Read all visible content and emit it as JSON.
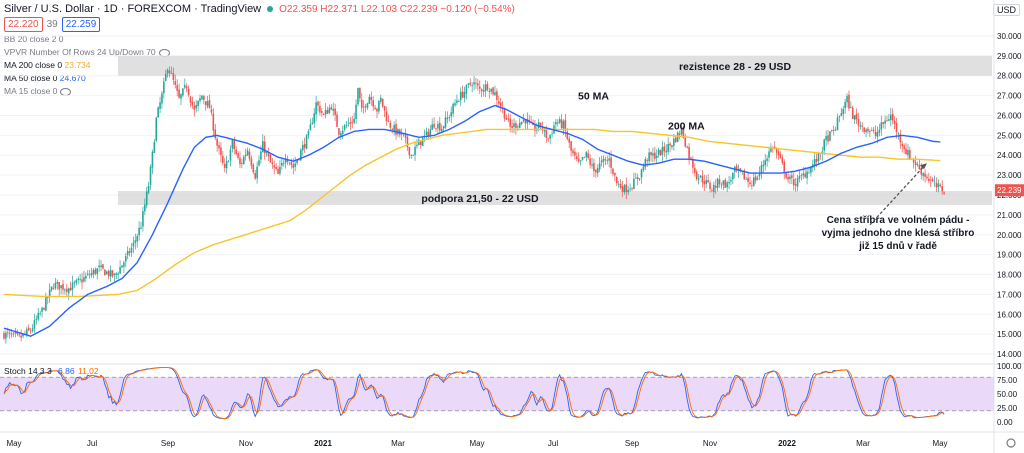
{
  "header": {
    "symbol": "Silver / U.S. Dollar · 1D · FOREXCOM · TradingView",
    "ohlc": "O22.359 H22.371 L22.103 C22.239 −0.120 (−0.54%)",
    "sell_price": "22.220",
    "spread": "39",
    "buy_price": "22.259",
    "currency_button": "USD"
  },
  "indicators": [
    {
      "label": "BB 20 close 2 0",
      "value": ""
    },
    {
      "label": "VPVR Number Of Rows 24 Up/Down 70",
      "value": ""
    },
    {
      "label": "MA 200 close 0",
      "value": "23.734"
    },
    {
      "label": "MA 50 close 0",
      "value": "24.670"
    },
    {
      "label": "MA 15 close 0",
      "value": ""
    }
  ],
  "stoch_label": "Stoch 14 3 3",
  "stoch_values": [
    "6.86",
    "11.02"
  ],
  "colors": {
    "up": "#26a69a",
    "down": "#ef5350",
    "ma50": "#2962ff",
    "ma200": "#f7c52b",
    "zone": "#d5d5d5",
    "stoch_bg": "#e1c9f5",
    "arrow": "#555555"
  },
  "chart_data": {
    "type": "candlestick",
    "title": "",
    "price_axis": {
      "ticks": [
        "30.000",
        "29.000",
        "28.000",
        "27.000",
        "26.000",
        "25.000",
        "24.000",
        "23.000",
        "22.000",
        "21.000",
        "20.000",
        "19.000",
        "18.000",
        "17.000",
        "16.000",
        "15.000",
        "14.000"
      ],
      "range": [
        13.6,
        30.4
      ],
      "last_price": "22.239"
    },
    "time_axis": [
      "May",
      "Jul",
      "Sep",
      "Nov",
      "2021",
      "Mar",
      "May",
      "Jul",
      "Sep",
      "Nov",
      "2022",
      "Mar",
      "May"
    ],
    "zones": [
      {
        "label": "rezistence 28 - 29 USD",
        "from": 28.0,
        "to": 29.0
      },
      {
        "label": "podpora 21,50 - 22 USD",
        "from": 21.5,
        "to": 22.2
      }
    ],
    "annotations": [
      {
        "text": "50 MA"
      },
      {
        "text": "200 MA"
      },
      {
        "lines": [
          "Cena stříbra ve volném pádu -",
          "vyjma jednoho dne klesá stříbro",
          "již 15 dnů v řadě"
        ]
      }
    ],
    "close_keypoints": [
      [
        0,
        15.0
      ],
      [
        8,
        14.8
      ],
      [
        14,
        15.2
      ],
      [
        20,
        16.2
      ],
      [
        26,
        17.5
      ],
      [
        34,
        17.3
      ],
      [
        42,
        17.8
      ],
      [
        50,
        18.3
      ],
      [
        58,
        17.9
      ],
      [
        64,
        18.8
      ],
      [
        68,
        19.5
      ],
      [
        72,
        20.5
      ],
      [
        76,
        22.5
      ],
      [
        78,
        24.0
      ],
      [
        80,
        25.8
      ],
      [
        83,
        27.0
      ],
      [
        86,
        28.5
      ],
      [
        88,
        28.0
      ],
      [
        92,
        26.8
      ],
      [
        96,
        27.5
      ],
      [
        100,
        26.2
      ],
      [
        104,
        27.0
      ],
      [
        108,
        26.4
      ],
      [
        112,
        24.5
      ],
      [
        116,
        23.2
      ],
      [
        120,
        24.6
      ],
      [
        124,
        23.5
      ],
      [
        128,
        24.3
      ],
      [
        132,
        23.0
      ],
      [
        136,
        24.5
      ],
      [
        140,
        23.6
      ],
      [
        144,
        23.0
      ],
      [
        148,
        24.0
      ],
      [
        152,
        23.4
      ],
      [
        156,
        24.2
      ],
      [
        160,
        25.0
      ],
      [
        164,
        26.6
      ],
      [
        168,
        26.0
      ],
      [
        172,
        26.5
      ],
      [
        176,
        25.2
      ],
      [
        180,
        25.5
      ],
      [
        184,
        25.8
      ],
      [
        186,
        27.3
      ],
      [
        188,
        26.2
      ],
      [
        192,
        27.0
      ],
      [
        196,
        26.3
      ],
      [
        198,
        26.8
      ],
      [
        202,
        25.6
      ],
      [
        206,
        25.2
      ],
      [
        210,
        24.9
      ],
      [
        214,
        24.0
      ],
      [
        218,
        24.6
      ],
      [
        222,
        25.0
      ],
      [
        226,
        25.6
      ],
      [
        230,
        25.4
      ],
      [
        234,
        26.0
      ],
      [
        238,
        26.8
      ],
      [
        242,
        27.2
      ],
      [
        246,
        27.7
      ],
      [
        250,
        27.3
      ],
      [
        254,
        27.5
      ],
      [
        258,
        27.1
      ],
      [
        262,
        26.3
      ],
      [
        266,
        25.4
      ],
      [
        270,
        25.6
      ],
      [
        274,
        25.8
      ],
      [
        278,
        25.3
      ],
      [
        282,
        25.5
      ],
      [
        286,
        24.8
      ],
      [
        290,
        25.7
      ],
      [
        294,
        25.5
      ],
      [
        298,
        24.2
      ],
      [
        302,
        23.5
      ],
      [
        306,
        24.0
      ],
      [
        310,
        23.2
      ],
      [
        314,
        23.6
      ],
      [
        318,
        23.8
      ],
      [
        322,
        22.6
      ],
      [
        326,
        22.3
      ],
      [
        330,
        22.5
      ],
      [
        334,
        23.0
      ],
      [
        338,
        23.9
      ],
      [
        342,
        24.0
      ],
      [
        346,
        24.2
      ],
      [
        350,
        24.5
      ],
      [
        354,
        25.0
      ],
      [
        356,
        25.3
      ],
      [
        360,
        24.0
      ],
      [
        364,
        23.0
      ],
      [
        368,
        22.7
      ],
      [
        372,
        22.3
      ],
      [
        376,
        22.7
      ],
      [
        380,
        22.5
      ],
      [
        384,
        23.2
      ],
      [
        388,
        23.0
      ],
      [
        392,
        22.6
      ],
      [
        396,
        22.9
      ],
      [
        400,
        23.8
      ],
      [
        404,
        24.5
      ],
      [
        408,
        23.7
      ],
      [
        412,
        22.8
      ],
      [
        416,
        22.6
      ],
      [
        420,
        23.0
      ],
      [
        424,
        23.4
      ],
      [
        428,
        23.9
      ],
      [
        432,
        24.8
      ],
      [
        436,
        25.2
      ],
      [
        440,
        26.2
      ],
      [
        443,
        26.8
      ],
      [
        446,
        26.0
      ],
      [
        450,
        25.5
      ],
      [
        454,
        25.3
      ],
      [
        458,
        25.0
      ],
      [
        462,
        25.6
      ],
      [
        466,
        26.0
      ],
      [
        470,
        25.0
      ],
      [
        474,
        24.2
      ],
      [
        478,
        23.7
      ],
      [
        482,
        23.2
      ],
      [
        486,
        22.8
      ],
      [
        490,
        22.4
      ],
      [
        494,
        22.24
      ]
    ],
    "ma50_keypoints": [
      [
        0,
        15.3
      ],
      [
        14,
        14.9
      ],
      [
        24,
        15.4
      ],
      [
        34,
        16.3
      ],
      [
        44,
        17.0
      ],
      [
        54,
        17.4
      ],
      [
        62,
        17.8
      ],
      [
        70,
        18.6
      ],
      [
        78,
        20.0
      ],
      [
        86,
        21.6
      ],
      [
        94,
        23.3
      ],
      [
        100,
        24.4
      ],
      [
        106,
        24.9
      ],
      [
        112,
        25.0
      ],
      [
        120,
        24.8
      ],
      [
        128,
        24.6
      ],
      [
        136,
        24.3
      ],
      [
        144,
        23.9
      ],
      [
        152,
        23.7
      ],
      [
        160,
        24.0
      ],
      [
        168,
        24.4
      ],
      [
        176,
        24.9
      ],
      [
        184,
        25.2
      ],
      [
        192,
        25.3
      ],
      [
        200,
        25.3
      ],
      [
        210,
        25.1
      ],
      [
        218,
        24.9
      ],
      [
        226,
        25.0
      ],
      [
        234,
        25.3
      ],
      [
        242,
        25.7
      ],
      [
        250,
        26.2
      ],
      [
        258,
        26.5
      ],
      [
        264,
        26.3
      ],
      [
        272,
        25.9
      ],
      [
        280,
        25.5
      ],
      [
        288,
        25.3
      ],
      [
        296,
        25.1
      ],
      [
        304,
        24.8
      ],
      [
        312,
        24.3
      ],
      [
        320,
        24.0
      ],
      [
        328,
        23.7
      ],
      [
        336,
        23.5
      ],
      [
        344,
        23.6
      ],
      [
        352,
        23.8
      ],
      [
        360,
        23.8
      ],
      [
        368,
        23.7
      ],
      [
        376,
        23.5
      ],
      [
        384,
        23.3
      ],
      [
        392,
        23.1
      ],
      [
        400,
        23.1
      ],
      [
        408,
        23.1
      ],
      [
        416,
        23.2
      ],
      [
        424,
        23.4
      ],
      [
        432,
        23.7
      ],
      [
        440,
        24.1
      ],
      [
        448,
        24.4
      ],
      [
        456,
        24.6
      ],
      [
        464,
        24.9
      ],
      [
        472,
        25.0
      ],
      [
        480,
        24.9
      ],
      [
        488,
        24.7
      ],
      [
        492,
        24.67
      ]
    ],
    "ma200_keypoints": [
      [
        0,
        17.0
      ],
      [
        20,
        16.9
      ],
      [
        40,
        16.9
      ],
      [
        60,
        17.0
      ],
      [
        70,
        17.2
      ],
      [
        80,
        17.8
      ],
      [
        90,
        18.5
      ],
      [
        100,
        19.1
      ],
      [
        110,
        19.5
      ],
      [
        120,
        19.8
      ],
      [
        130,
        20.1
      ],
      [
        140,
        20.4
      ],
      [
        150,
        20.7
      ],
      [
        158,
        21.2
      ],
      [
        166,
        21.8
      ],
      [
        174,
        22.4
      ],
      [
        182,
        23.0
      ],
      [
        190,
        23.5
      ],
      [
        198,
        23.9
      ],
      [
        206,
        24.3
      ],
      [
        214,
        24.6
      ],
      [
        222,
        24.8
      ],
      [
        230,
        25.0
      ],
      [
        238,
        25.1
      ],
      [
        246,
        25.2
      ],
      [
        254,
        25.3
      ],
      [
        262,
        25.3
      ],
      [
        270,
        25.3
      ],
      [
        280,
        25.3
      ],
      [
        290,
        25.3
      ],
      [
        300,
        25.3
      ],
      [
        310,
        25.3
      ],
      [
        320,
        25.2
      ],
      [
        330,
        25.2
      ],
      [
        340,
        25.1
      ],
      [
        350,
        25.0
      ],
      [
        360,
        24.9
      ],
      [
        370,
        24.7
      ],
      [
        380,
        24.6
      ],
      [
        390,
        24.5
      ],
      [
        400,
        24.4
      ],
      [
        410,
        24.3
      ],
      [
        420,
        24.2
      ],
      [
        430,
        24.1
      ],
      [
        440,
        24.0
      ],
      [
        450,
        23.9
      ],
      [
        460,
        23.9
      ],
      [
        470,
        23.8
      ],
      [
        480,
        23.8
      ],
      [
        492,
        23.73
      ]
    ],
    "stoch": {
      "ticks": [
        "100.00",
        "75.00",
        "50.00",
        "25.00",
        "0.00"
      ],
      "band": [
        20,
        80
      ],
      "range": [
        0,
        100
      ]
    }
  }
}
